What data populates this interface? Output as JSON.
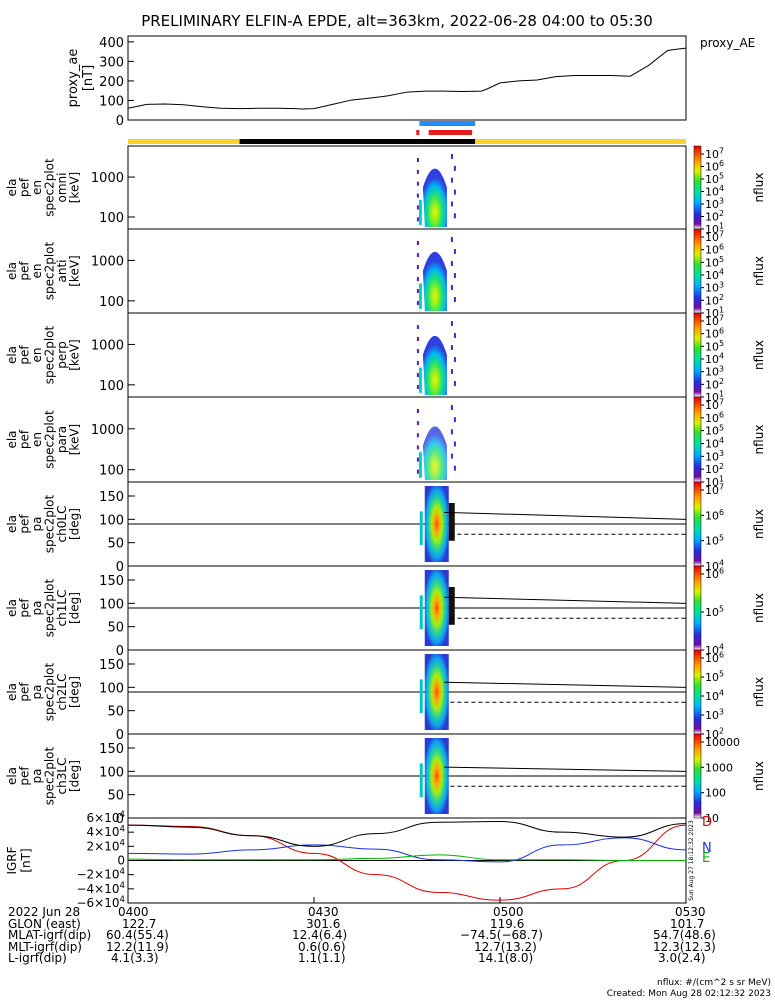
{
  "title": "PRELIMINARY ELFIN-A EPDE, alt=363km, 2022-06-28 04:00 to 05:30",
  "chart_data": [
    {
      "type": "line",
      "name": "proxy_ae",
      "ylabel": "proxy_ae [nT]",
      "legend": "proxy_AE",
      "yticks": [
        "400",
        "300",
        "200",
        "100",
        "0"
      ],
      "ylim": [
        0,
        430
      ],
      "xlim_min": [
        0,
        90
      ],
      "x_min": [
        0,
        3,
        6,
        9,
        12,
        15,
        18,
        21,
        24,
        27,
        28,
        30,
        33,
        36,
        39,
        42,
        45,
        48,
        51,
        54,
        57,
        58,
        60,
        63,
        66,
        69,
        72,
        75,
        78,
        81,
        84,
        87,
        88,
        90
      ],
      "values": [
        60,
        80,
        82,
        78,
        68,
        60,
        58,
        60,
        60,
        58,
        56,
        58,
        80,
        102,
        112,
        124,
        143,
        148,
        148,
        146,
        148,
        160,
        190,
        200,
        205,
        222,
        228,
        228,
        228,
        224,
        280,
        355,
        360,
        368
      ]
    },
    {
      "type": "heatmap",
      "name": "ela_pef_en_spec2plot_omni",
      "ylabel": "ela pef en spec2plot omni [keV]",
      "yscale": "log",
      "yticks": [
        "1000",
        "100"
      ],
      "colorbar": {
        "label": "nflux",
        "ticks": [
          "10^7",
          "10^6",
          "10^5",
          "10^4",
          "10^3",
          "10^2",
          "10^1"
        ]
      }
    },
    {
      "type": "heatmap",
      "name": "ela_pef_en_spec2plot_anti",
      "ylabel": "ela pef en spec2plot anti [keV]",
      "yscale": "log",
      "yticks": [
        "1000",
        "100"
      ],
      "colorbar": {
        "label": "nflux",
        "ticks": [
          "10^7",
          "10^6",
          "10^5",
          "10^4",
          "10^3",
          "10^2",
          "10^1"
        ]
      }
    },
    {
      "type": "heatmap",
      "name": "ela_pef_en_spec2plot_perp",
      "ylabel": "ela pef en spec2plot perp [keV]",
      "yscale": "log",
      "yticks": [
        "1000",
        "100"
      ],
      "colorbar": {
        "label": "nflux",
        "ticks": [
          "10^7",
          "10^6",
          "10^5",
          "10^4",
          "10^3",
          "10^2",
          "10^1"
        ]
      }
    },
    {
      "type": "heatmap",
      "name": "ela_pef_en_spec2plot_para",
      "ylabel": "ela pef en spec2plot para [keV]",
      "yscale": "log",
      "yticks": [
        "1000",
        "100"
      ],
      "colorbar": {
        "label": "nflux",
        "ticks": [
          "10^7",
          "10^6",
          "10^5",
          "10^4",
          "10^3",
          "10^2",
          "10^1"
        ]
      }
    },
    {
      "type": "heatmap",
      "name": "ela_pef_pa_spec2plot_ch0LC",
      "ylabel": "ela pef pa spec2plot ch0LC [deg]",
      "yticks": [
        "150",
        "100",
        "50",
        "0"
      ],
      "ylim": [
        0,
        180
      ],
      "colorbar": {
        "label": "nflux",
        "ticks": [
          "10^7",
          "10^6",
          "10^5",
          "10^4"
        ]
      }
    },
    {
      "type": "heatmap",
      "name": "ela_pef_pa_spec2plot_ch1LC",
      "ylabel": "ela pef pa spec2plot ch1LC [deg]",
      "yticks": [
        "150",
        "100",
        "50",
        "0"
      ],
      "ylim": [
        0,
        180
      ],
      "colorbar": {
        "label": "nflux",
        "ticks": [
          "10^6",
          "10^5",
          "10^4"
        ]
      }
    },
    {
      "type": "heatmap",
      "name": "ela_pef_pa_spec2plot_ch2LC",
      "ylabel": "ela pef pa spec2plot ch2LC [deg]",
      "yticks": [
        "150",
        "100",
        "50",
        "0"
      ],
      "ylim": [
        0,
        180
      ],
      "colorbar": {
        "label": "nflux",
        "ticks": [
          "10^6",
          "10^5",
          "10^4",
          "10^3",
          "10^2"
        ]
      }
    },
    {
      "type": "heatmap",
      "name": "ela_pef_pa_spec2plot_ch3LC",
      "ylabel": "ela pef pa spec2plot ch3LC [deg]",
      "yticks": [
        "150",
        "100",
        "50",
        "0"
      ],
      "ylim": [
        0,
        180
      ],
      "colorbar": {
        "label": "nflux",
        "ticks": [
          "10000",
          "1000",
          "100",
          "10"
        ]
      }
    },
    {
      "type": "line",
      "name": "igrf",
      "ylabel": "IGRF [nT]",
      "yticks": [
        "6×10^4",
        "4×10^4",
        "2×10^4",
        "0",
        "−2×10^4",
        "−4×10^4",
        "−6×10^4"
      ],
      "ylim": [
        -60000,
        60000
      ],
      "legend": [
        "D",
        "N",
        "E"
      ],
      "x_min": [
        0,
        10,
        20,
        30,
        40,
        50,
        60,
        70,
        80,
        90
      ],
      "series": [
        {
          "name": "D",
          "color": "#e00000",
          "values": [
            50000,
            48000,
            35000,
            10000,
            -20000,
            -45000,
            -56000,
            -40000,
            0,
            50000
          ]
        },
        {
          "name": "N",
          "color": "#1a2ee8",
          "values": [
            10000,
            9000,
            15000,
            22000,
            16000,
            1000,
            -2000,
            22000,
            32000,
            15000
          ]
        },
        {
          "name": "E",
          "color": "#00b000",
          "values": [
            2000,
            1000,
            1000,
            1000,
            3000,
            8000,
            1000,
            1000,
            0,
            0
          ]
        },
        {
          "name": "total",
          "color": "#000000",
          "values": [
            50000,
            47000,
            35000,
            20000,
            38000,
            54000,
            55000,
            40000,
            33000,
            52000
          ]
        }
      ],
      "side_label": "Sun Aug 27 18:12:32 2023"
    }
  ],
  "time_axis": {
    "labels": [
      "0400",
      "0430",
      "0500",
      "0530"
    ],
    "first_col_label": "2022 Jun 28",
    "rows": [
      {
        "label": "GLON (east)",
        "values": [
          "122.7",
          "301.6",
          "119.6",
          "101.7"
        ]
      },
      {
        "label": "MLAT-igrf(dip)",
        "values": [
          "60.4(55.4)",
          "12.4(6.4)",
          "−74.5(−68.7)",
          "54.7(48.6)"
        ]
      },
      {
        "label": "MLT-igrf(dip)",
        "values": [
          "12.2(11.9)",
          "0.6(0.6)",
          "12.7(13.2)",
          "12.3(12.3)"
        ]
      },
      {
        "label": "L-igrf(dip)",
        "values": [
          "4.1(3.3)",
          "1.1(1.1)",
          "14.1(8.0)",
          "3.0(2.4)"
        ]
      }
    ]
  },
  "footnote_units": "nflux: #/(cm^2 s sr MeV)",
  "footnote_created": "Created: Mon Aug 28 02:12:32 2023",
  "colors": {
    "orbit_bar_yellow": "#f7d32a",
    "orbit_bar_black": "#000000",
    "science_zone_blue": "#1e90ff",
    "science_zone_red": "#e02020"
  }
}
